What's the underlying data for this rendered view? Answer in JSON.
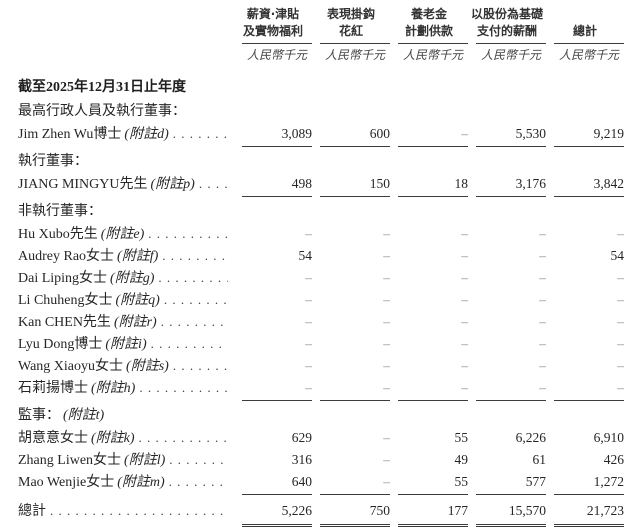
{
  "table": {
    "period_heading": "截至2025年12月31日止年度",
    "columns": [
      {
        "line1": "薪資‧津貼",
        "line2": "及實物福利",
        "unit": "人民幣千元"
      },
      {
        "line1": "表現掛鈎",
        "line2": "花紅",
        "unit": "人民幣千元"
      },
      {
        "line1": "養老金",
        "line2": "計劃供款",
        "unit": "人民幣千元"
      },
      {
        "line1": "以股份為基礎",
        "line2": "支付的薪酬",
        "unit": "人民幣千元"
      },
      {
        "line1": "",
        "line2": "總計",
        "unit": "人民幣千元"
      }
    ],
    "rows": [
      {
        "type": "section",
        "label": "最高行政人員及執行董事：",
        "note": ""
      },
      {
        "type": "data",
        "name": "Jim Zhen Wu博士",
        "note": "(附註d)",
        "values": [
          "3,089",
          "600",
          "–",
          "5,530",
          "9,219"
        ],
        "underline": true
      },
      {
        "type": "section",
        "label": "執行董事：",
        "note": ""
      },
      {
        "type": "data",
        "name": "JIANG MINGYU先生",
        "note": "(附註p)",
        "values": [
          "498",
          "150",
          "18",
          "3,176",
          "3,842"
        ],
        "underline": true
      },
      {
        "type": "section",
        "label": "非執行董事：",
        "note": ""
      },
      {
        "type": "data",
        "name": "Hu Xubo先生",
        "note": "(附註e)",
        "values": [
          "–",
          "–",
          "–",
          "–",
          "–"
        ]
      },
      {
        "type": "data",
        "name": "Audrey Rao女士",
        "note": "(附註f)",
        "values": [
          "54",
          "–",
          "–",
          "–",
          "54"
        ]
      },
      {
        "type": "data",
        "name": "Dai Liping女士",
        "note": "(附註g)",
        "values": [
          "–",
          "–",
          "–",
          "–",
          "–"
        ]
      },
      {
        "type": "data",
        "name": "Li Chuheng女士",
        "note": "(附註q)",
        "values": [
          "–",
          "–",
          "–",
          "–",
          "–"
        ]
      },
      {
        "type": "data",
        "name": "Kan CHEN先生",
        "note": "(附註r)",
        "values": [
          "–",
          "–",
          "–",
          "–",
          "–"
        ]
      },
      {
        "type": "data",
        "name": "Lyu Dong博士",
        "note": "(附註i)",
        "values": [
          "–",
          "–",
          "–",
          "–",
          "–"
        ]
      },
      {
        "type": "data",
        "name": "Wang Xiaoyu女士",
        "note": "(附註s)",
        "values": [
          "–",
          "–",
          "–",
          "–",
          "–"
        ]
      },
      {
        "type": "data",
        "name": "石莉揚博士",
        "note": "(附註h)",
        "values": [
          "–",
          "–",
          "–",
          "–",
          "–"
        ],
        "underline": true
      },
      {
        "type": "section",
        "label": "監事：",
        "note": "(附註t)"
      },
      {
        "type": "data",
        "name": "胡意意女士",
        "note": "(附註k)",
        "values": [
          "629",
          "–",
          "55",
          "6,226",
          "6,910"
        ]
      },
      {
        "type": "data",
        "name": "Zhang Liwen女士",
        "note": "(附註l)",
        "values": [
          "316",
          "–",
          "49",
          "61",
          "426"
        ]
      },
      {
        "type": "data",
        "name": "Mao Wenjie女士",
        "note": "(附註m)",
        "values": [
          "640",
          "–",
          "55",
          "577",
          "1,272"
        ],
        "underline": true
      },
      {
        "type": "total",
        "name": "總計",
        "note": "",
        "values": [
          "5,226",
          "750",
          "177",
          "15,570",
          "21,723"
        ]
      }
    ]
  }
}
